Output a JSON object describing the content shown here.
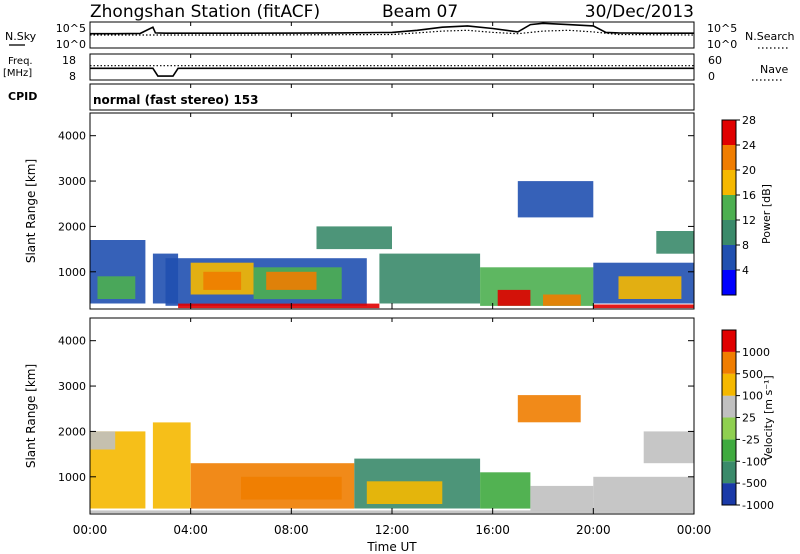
{
  "header": {
    "station": "Zhongshan Station (fitACF)",
    "beam": "Beam 07",
    "date": "30/Dec/2013",
    "cpid_label": "CPID",
    "mode": "normal (fast stereo) 153"
  },
  "chart_data": [
    {
      "type": "line",
      "id": "noise",
      "left_axis": {
        "label": "N.Sky",
        "ticks": [
          "10^5",
          "10^0"
        ]
      },
      "right_axis": {
        "label": "N.Search",
        "ticks": [
          "10^5",
          "10^0"
        ]
      },
      "series": [
        {
          "name": "N.Sky",
          "style": "solid",
          "x": [
            0,
            1,
            2,
            2.5,
            2.6,
            3,
            6,
            10,
            12,
            13,
            14,
            15,
            16,
            17,
            17.5,
            18,
            19,
            20,
            20.5,
            21,
            22,
            23,
            24
          ],
          "y": [
            0.55,
            0.55,
            0.56,
            0.8,
            0.58,
            0.57,
            0.57,
            0.58,
            0.6,
            0.68,
            0.8,
            0.85,
            0.75,
            0.62,
            0.9,
            0.95,
            0.9,
            0.85,
            0.6,
            0.58,
            0.57,
            0.57,
            0.57
          ]
        },
        {
          "name": "N.Search",
          "style": "dotted",
          "x": [
            0,
            3,
            6,
            10,
            12,
            13,
            14,
            15,
            16,
            17,
            18,
            19,
            20,
            21,
            24
          ],
          "y": [
            0.5,
            0.5,
            0.5,
            0.51,
            0.52,
            0.58,
            0.65,
            0.68,
            0.6,
            0.55,
            0.65,
            0.68,
            0.62,
            0.52,
            0.5
          ]
        }
      ]
    },
    {
      "type": "line",
      "id": "frequency",
      "left_axis": {
        "label": "Freq.",
        "unit": "[MHz]",
        "ticks": [
          "18",
          "8"
        ]
      },
      "right_axis": {
        "label": "Nave",
        "ticks": [
          "60",
          "0"
        ]
      },
      "series": [
        {
          "name": "Freq.",
          "style": "solid",
          "x": [
            0,
            2.5,
            2.7,
            3.3,
            3.5,
            24
          ],
          "y": [
            0.45,
            0.45,
            0.15,
            0.15,
            0.45,
            0.45
          ]
        },
        {
          "name": "Nave",
          "style": "dotted",
          "x": [
            0,
            24
          ],
          "y": [
            0.55,
            0.55
          ]
        }
      ]
    },
    {
      "type": "heatmap",
      "id": "power",
      "ylabel": "Slant Range [km]",
      "yticks": [
        "1000",
        "2000",
        "3000",
        "4000"
      ],
      "ylim": [
        180,
        4500
      ],
      "colorbar": {
        "label": "Power [dB]",
        "ticks": [
          "4",
          "8",
          "12",
          "16",
          "20",
          "24",
          "28"
        ],
        "colors": [
          "#0000ff",
          "#2050b0",
          "#3a8a6a",
          "#4caf50",
          "#f5b800",
          "#f07d00",
          "#e00000"
        ]
      },
      "regions": [
        {
          "t0": 0.0,
          "t1": 2.2,
          "r0": 300,
          "r1": 1700,
          "level": 1
        },
        {
          "t0": 0.3,
          "t1": 1.8,
          "r0": 400,
          "r1": 900,
          "level": 3
        },
        {
          "t0": 2.5,
          "t1": 3.5,
          "r0": 300,
          "r1": 1400,
          "level": 1
        },
        {
          "t0": 3.0,
          "t1": 11.0,
          "r0": 250,
          "r1": 1300,
          "level": 1
        },
        {
          "t0": 4.0,
          "t1": 6.5,
          "r0": 500,
          "r1": 1200,
          "level": 4
        },
        {
          "t0": 4.5,
          "t1": 6.0,
          "r0": 600,
          "r1": 1000,
          "level": 5
        },
        {
          "t0": 6.5,
          "t1": 10.0,
          "r0": 400,
          "r1": 1100,
          "level": 3
        },
        {
          "t0": 7.0,
          "t1": 9.0,
          "r0": 600,
          "r1": 1000,
          "level": 5
        },
        {
          "t0": 3.5,
          "t1": 11.5,
          "r0": 200,
          "r1": 300,
          "level": 6
        },
        {
          "t0": 11.5,
          "t1": 15.5,
          "r0": 300,
          "r1": 1400,
          "level": 2
        },
        {
          "t0": 9.0,
          "t1": 12.0,
          "r0": 1500,
          "r1": 2000,
          "level": 2
        },
        {
          "t0": 15.5,
          "t1": 20.0,
          "r0": 250,
          "r1": 1100,
          "level": 3
        },
        {
          "t0": 16.2,
          "t1": 17.5,
          "r0": 250,
          "r1": 600,
          "level": 6
        },
        {
          "t0": 18.0,
          "t1": 19.5,
          "r0": 250,
          "r1": 500,
          "level": 5
        },
        {
          "t0": 20.0,
          "t1": 24.0,
          "r0": 300,
          "r1": 1200,
          "level": 1
        },
        {
          "t0": 21.0,
          "t1": 23.5,
          "r0": 400,
          "r1": 900,
          "level": 4
        },
        {
          "t0": 22.5,
          "t1": 24.0,
          "r0": 1400,
          "r1": 1900,
          "level": 2
        },
        {
          "t0": 17.0,
          "t1": 20.0,
          "r0": 2200,
          "r1": 3000,
          "level": 1
        },
        {
          "t0": 20.0,
          "t1": 24.0,
          "r0": 200,
          "r1": 280,
          "level": 6
        }
      ]
    },
    {
      "type": "heatmap",
      "id": "velocity",
      "xlabel": "Time UT",
      "ylabel": "Slant Range [km]",
      "yticks": [
        "1000",
        "2000",
        "3000",
        "4000"
      ],
      "ylim": [
        180,
        4500
      ],
      "xticks": [
        "00:00",
        "04:00",
        "08:00",
        "12:00",
        "16:00",
        "20:00",
        "00:00"
      ],
      "colorbar": {
        "label": "Velocity [m s⁻¹]",
        "ticks": [
          "1000",
          "500",
          "100",
          "25",
          "-25",
          "-100",
          "-500",
          "-1000"
        ],
        "colors": [
          "#1a3aa8",
          "#3a8a6a",
          "#3faa3f",
          "#8fcf50",
          "#c0c0c0",
          "#f5b800",
          "#f07d00",
          "#e00000"
        ]
      },
      "regions": [
        {
          "t0": 0.0,
          "t1": 2.2,
          "r0": 300,
          "r1": 2000,
          "level": 5
        },
        {
          "t0": 0.0,
          "t1": 1.0,
          "r0": 1600,
          "r1": 2000,
          "level": 4
        },
        {
          "t0": 2.5,
          "t1": 4.0,
          "r0": 300,
          "r1": 2200,
          "level": 5
        },
        {
          "t0": 4.0,
          "t1": 10.5,
          "r0": 300,
          "r1": 1300,
          "level": 6
        },
        {
          "t0": 6.0,
          "t1": 10.0,
          "r0": 500,
          "r1": 1000,
          "level": 6
        },
        {
          "t0": 10.5,
          "t1": 15.5,
          "r0": 300,
          "r1": 1400,
          "level": 1
        },
        {
          "t0": 11.0,
          "t1": 14.0,
          "r0": 400,
          "r1": 900,
          "level": 5
        },
        {
          "t0": 15.5,
          "t1": 17.5,
          "r0": 300,
          "r1": 1100,
          "level": 2
        },
        {
          "t0": 17.5,
          "t1": 20.0,
          "r0": 250,
          "r1": 800,
          "level": 4
        },
        {
          "t0": 20.0,
          "t1": 24.0,
          "r0": 250,
          "r1": 1000,
          "level": 4
        },
        {
          "t0": 22.0,
          "t1": 24.0,
          "r0": 1300,
          "r1": 2000,
          "level": 4
        },
        {
          "t0": 17.0,
          "t1": 19.5,
          "r0": 2200,
          "r1": 2800,
          "level": 6
        },
        {
          "t0": 0.0,
          "t1": 24.0,
          "r0": 200,
          "r1": 260,
          "level": 4
        }
      ]
    }
  ]
}
